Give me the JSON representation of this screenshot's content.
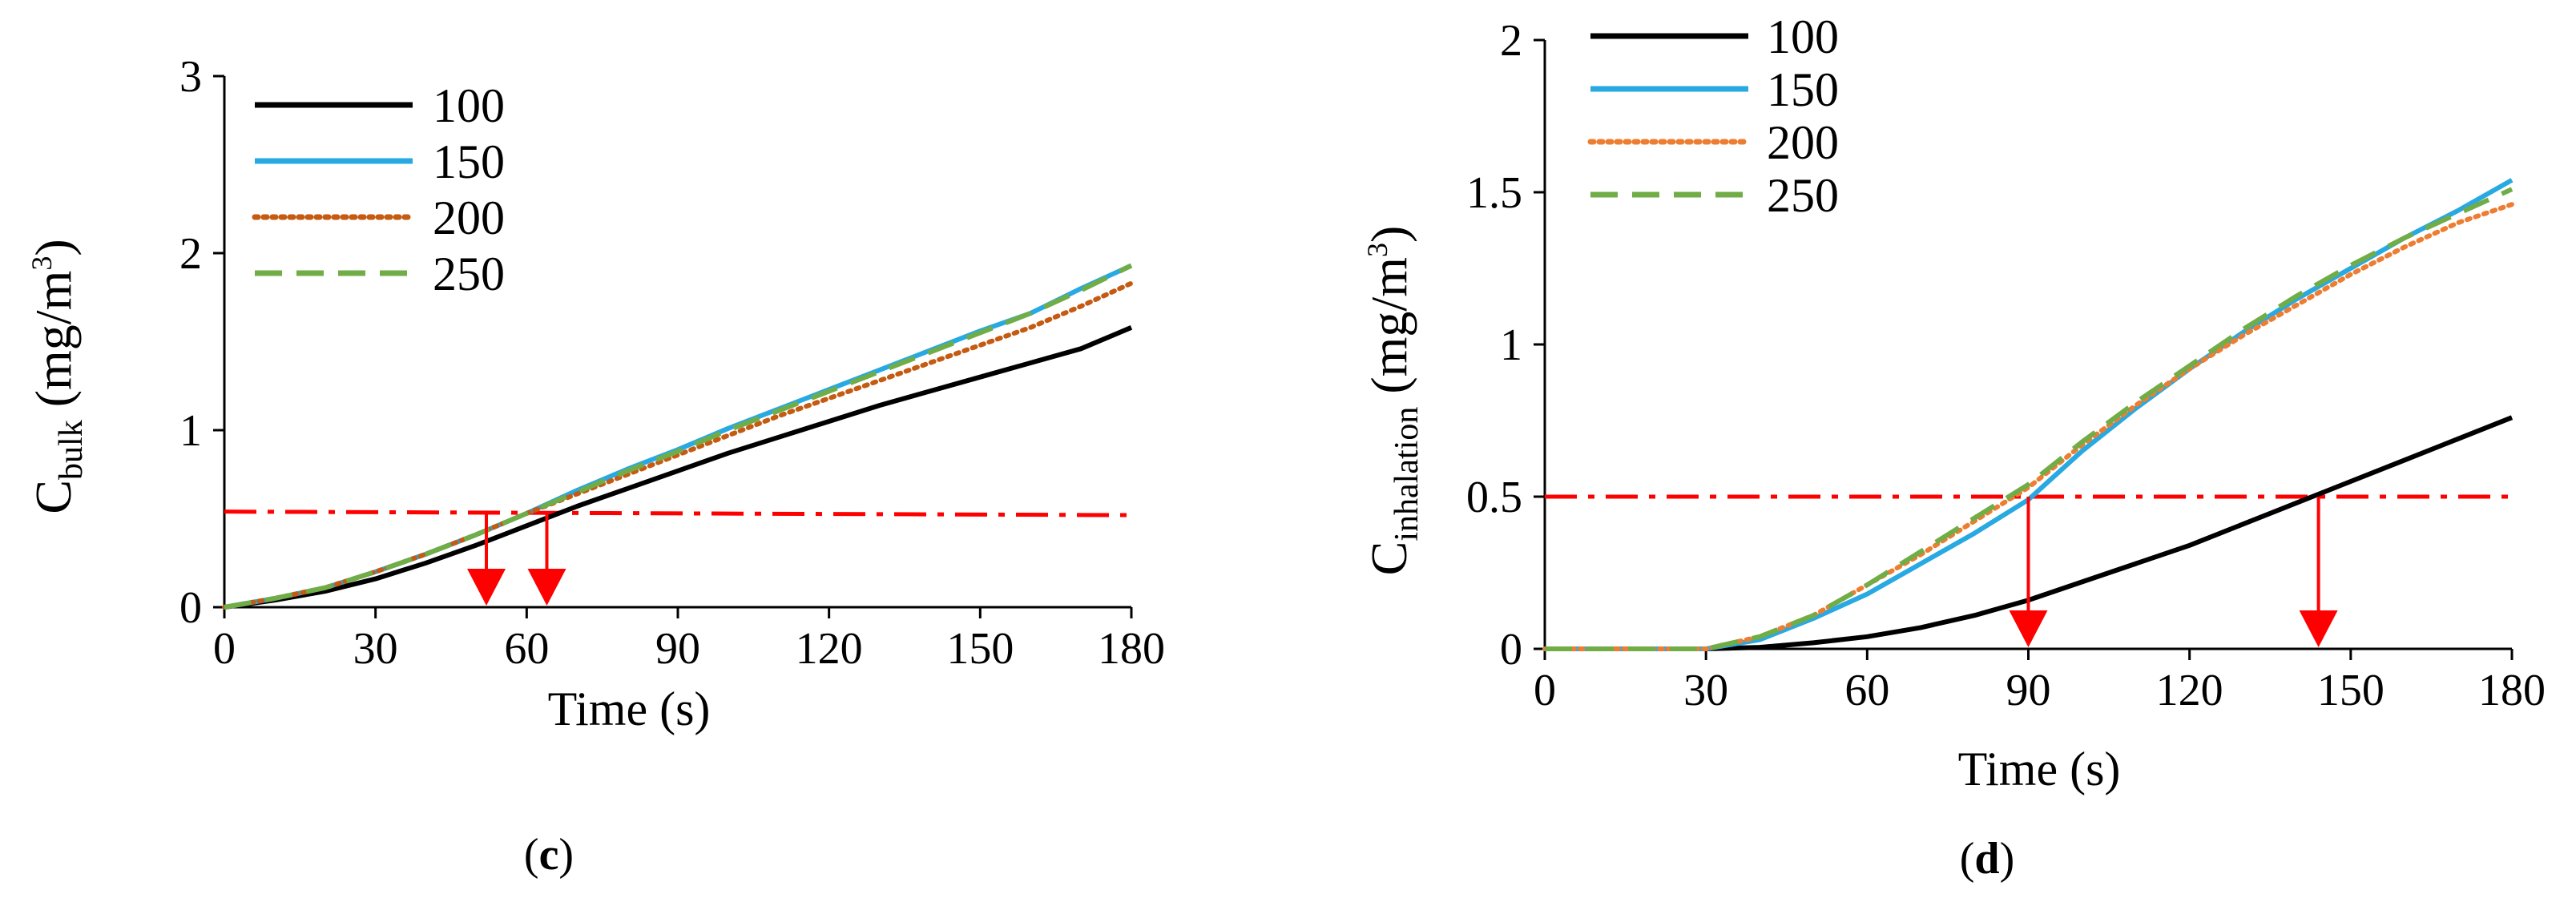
{
  "chart_data": [
    {
      "type": "line",
      "panel": "c",
      "caption_open": "(",
      "caption_letter": "c",
      "caption_close": ")",
      "title": "",
      "xlabel": "Time (s)",
      "ylabel_main": "C",
      "ylabel_sub": "bulk",
      "ylabel_rest": " (mg/m",
      "ylabel_sup": "3",
      "ylabel_end": ")",
      "xlim": [
        0,
        180
      ],
      "ylim": [
        0,
        3
      ],
      "xticks": [
        0,
        30,
        60,
        90,
        120,
        150,
        180
      ],
      "yticks": [
        0,
        1,
        2,
        3
      ],
      "legend_position": "top-left",
      "threshold": {
        "y_start": 0.54,
        "y_end": 0.52,
        "color": "#ff0000",
        "style": "dash-dot"
      },
      "arrows": [
        {
          "x": 52,
          "from_y": 0.54,
          "color": "#ff0000"
        },
        {
          "x": 64,
          "from_y": 0.54,
          "color": "#ff0000"
        }
      ],
      "x": [
        0,
        10,
        20,
        30,
        40,
        50,
        60,
        70,
        80,
        90,
        100,
        110,
        120,
        130,
        140,
        150,
        160,
        170,
        180
      ],
      "series": [
        {
          "name": "100",
          "color": "#000000",
          "style": "solid",
          "values": [
            0,
            0.04,
            0.09,
            0.16,
            0.25,
            0.35,
            0.46,
            0.57,
            0.67,
            0.77,
            0.87,
            0.96,
            1.05,
            1.14,
            1.22,
            1.3,
            1.38,
            1.46,
            1.58
          ]
        },
        {
          "name": "150",
          "color": "#29a9e1",
          "style": "solid",
          "values": [
            0,
            0.05,
            0.11,
            0.2,
            0.3,
            0.41,
            0.53,
            0.66,
            0.78,
            0.89,
            1.01,
            1.12,
            1.23,
            1.34,
            1.45,
            1.56,
            1.66,
            1.8,
            1.93
          ]
        },
        {
          "name": "200",
          "color": "#c55a11",
          "style": "dotted",
          "values": [
            0,
            0.05,
            0.11,
            0.2,
            0.3,
            0.41,
            0.53,
            0.64,
            0.75,
            0.86,
            0.97,
            1.08,
            1.18,
            1.28,
            1.38,
            1.48,
            1.58,
            1.7,
            1.83
          ]
        },
        {
          "name": "250",
          "color": "#70ad47",
          "style": "dashed",
          "values": [
            0,
            0.05,
            0.11,
            0.2,
            0.3,
            0.41,
            0.53,
            0.65,
            0.77,
            0.88,
            1.0,
            1.11,
            1.22,
            1.33,
            1.44,
            1.55,
            1.66,
            1.79,
            1.93
          ]
        }
      ]
    },
    {
      "type": "line",
      "panel": "d",
      "caption_open": "(",
      "caption_letter": "d",
      "caption_close": ")",
      "title": "",
      "xlabel": "Time (s)",
      "ylabel_main": "C",
      "ylabel_sub": "inhalation",
      "ylabel_rest": " (mg/m",
      "ylabel_sup": "3",
      "ylabel_end": ")",
      "xlim": [
        0,
        180
      ],
      "ylim": [
        0,
        2
      ],
      "xticks": [
        0,
        30,
        60,
        90,
        120,
        150,
        180
      ],
      "yticks": [
        0,
        0.5,
        1,
        1.5,
        2
      ],
      "legend_position": "top-left",
      "threshold": {
        "y_start": 0.5,
        "y_end": 0.5,
        "color": "#ff0000",
        "style": "dash-dot"
      },
      "arrows": [
        {
          "x": 90,
          "from_y": 0.5,
          "color": "#ff0000"
        },
        {
          "x": 144,
          "from_y": 0.5,
          "color": "#ff0000"
        }
      ],
      "x": [
        0,
        10,
        20,
        30,
        40,
        50,
        60,
        70,
        80,
        90,
        100,
        110,
        120,
        130,
        140,
        150,
        160,
        170,
        180
      ],
      "series": [
        {
          "name": "100",
          "color": "#000000",
          "style": "solid",
          "values": [
            0,
            0,
            0,
            0,
            0.005,
            0.02,
            0.04,
            0.07,
            0.11,
            0.16,
            0.22,
            0.28,
            0.34,
            0.41,
            0.48,
            0.55,
            0.62,
            0.69,
            0.76
          ]
        },
        {
          "name": "150",
          "color": "#29a9e1",
          "style": "solid",
          "values": [
            0,
            0,
            0,
            0,
            0.03,
            0.1,
            0.18,
            0.28,
            0.38,
            0.49,
            0.65,
            0.79,
            0.92,
            1.04,
            1.15,
            1.25,
            1.35,
            1.44,
            1.54
          ]
        },
        {
          "name": "200",
          "color": "#ed7d31",
          "style": "dotted",
          "values": [
            0,
            0,
            0,
            0,
            0.04,
            0.11,
            0.21,
            0.31,
            0.42,
            0.53,
            0.67,
            0.8,
            0.92,
            1.03,
            1.13,
            1.23,
            1.32,
            1.4,
            1.46
          ]
        },
        {
          "name": "250",
          "color": "#70ad47",
          "style": "dashed",
          "values": [
            0,
            0,
            0,
            0,
            0.04,
            0.11,
            0.21,
            0.32,
            0.43,
            0.54,
            0.68,
            0.81,
            0.93,
            1.05,
            1.16,
            1.26,
            1.35,
            1.43,
            1.51
          ]
        }
      ]
    }
  ]
}
